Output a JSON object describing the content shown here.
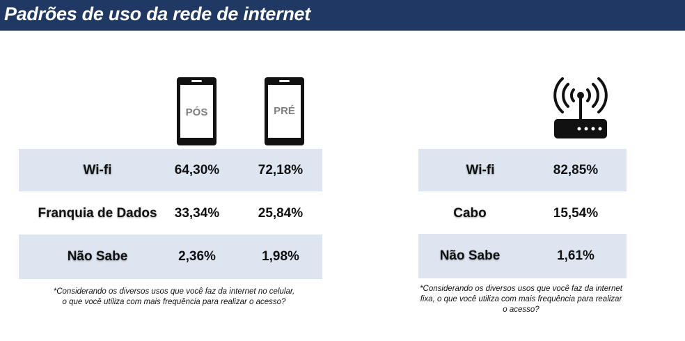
{
  "header": {
    "title": "Padrões de uso da rede de internet"
  },
  "icons": {
    "phone_pos_label": "PÓS",
    "phone_pre_label": "PRÉ",
    "phone_icon": "smartphone-icon",
    "router_icon": "wifi-router-icon"
  },
  "mobile_table": {
    "rows": [
      {
        "label": "Wi-fi",
        "pos": "64,30%",
        "pre": "72,18%"
      },
      {
        "label": "Franquia de Dados",
        "pos": "33,34%",
        "pre": "25,84%"
      },
      {
        "label": "Não Sabe",
        "pos": "2,36%",
        "pre": "1,98%"
      }
    ],
    "note_line1": "*Considerando os diversos usos que você faz da internet no celular,",
    "note_line2": "o que você utiliza com mais frequência para realizar o acesso?"
  },
  "fixed_table": {
    "rows": [
      {
        "label": "Wi-fi",
        "value": "82,85%"
      },
      {
        "label": "Cabo",
        "value": "15,54%"
      },
      {
        "label": "Não Sabe",
        "value": "1,61%"
      }
    ],
    "note_line1": "*Considerando os diversos usos que você faz da internet",
    "note_line2": "fixa, o que você utiliza com mais frequência para realizar",
    "note_line3": "o acesso?"
  },
  "colors": {
    "header_bg": "#1f3864",
    "row_shade": "#dde5f1"
  }
}
